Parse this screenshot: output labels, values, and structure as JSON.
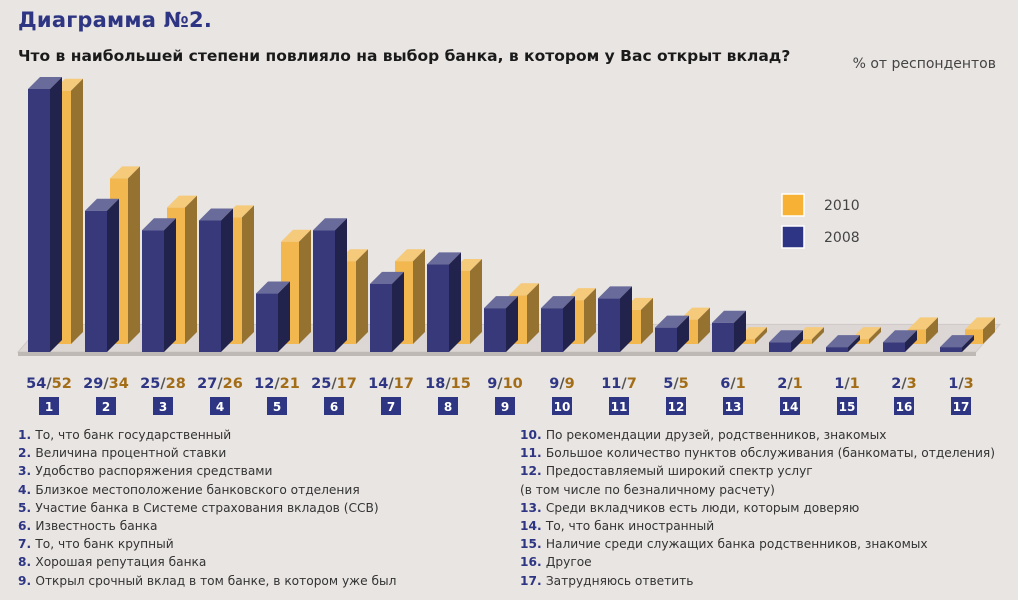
{
  "chart_data": {
    "type": "bar",
    "title": "Диаграмма №2.",
    "subtitle": "Что в наибольшей степени повлияло на выбор банка, в котором у Вас открыт вклад?",
    "unit_label": "% от респондентов",
    "categories": [
      "1",
      "2",
      "3",
      "4",
      "5",
      "6",
      "7",
      "8",
      "9",
      "10",
      "11",
      "12",
      "13",
      "14",
      "15",
      "16",
      "17"
    ],
    "series": [
      {
        "name": "2008",
        "color": "#37397a",
        "values": [
          54,
          29,
          25,
          27,
          12,
          25,
          14,
          18,
          9,
          9,
          11,
          5,
          6,
          2,
          1,
          2,
          1
        ]
      },
      {
        "name": "2010",
        "color": "#f2b84f",
        "values": [
          52,
          34,
          28,
          26,
          21,
          17,
          17,
          15,
          10,
          9,
          7,
          5,
          1,
          1,
          1,
          3,
          3
        ]
      }
    ],
    "value_labels": [
      "54/52",
      "29/34",
      "25/28",
      "27/26",
      "12/21",
      "25/17",
      "14/17",
      "18/15",
      "9/10",
      "9/9",
      "11/7",
      "5/5",
      "6/1",
      "2/1",
      "1/1",
      "2/3",
      "1/3"
    ],
    "legend": [
      {
        "label": "2010",
        "color": "#f7b134"
      },
      {
        "label": "2008",
        "color": "#2f3585"
      }
    ],
    "legend_placement": "right",
    "ylim": [
      0,
      55
    ],
    "grid": false
  },
  "notes_left": [
    {
      "num": "1.",
      "text": "То, что банк государственный"
    },
    {
      "num": "2.",
      "text": "Величина процентной ставки"
    },
    {
      "num": "3.",
      "text": "Удобство распоряжения средствами"
    },
    {
      "num": "4.",
      "text": "Близкое местоположение банковского отделения"
    },
    {
      "num": "5.",
      "text": "Участие банка в Системе страхования вкладов (ССВ)"
    },
    {
      "num": "6.",
      "text": "Известность банка"
    },
    {
      "num": "7.",
      "text": "То, что банк крупный"
    },
    {
      "num": "8.",
      "text": "Хорошая репутация банка"
    },
    {
      "num": "9.",
      "text": "Открыл срочный вклад в том банке, в котором уже был"
    }
  ],
  "notes_right": [
    {
      "num": "10.",
      "text": "По рекомендации друзей, родственников, знакомых"
    },
    {
      "num": "11.",
      "text": "Большое количество пунктов обслуживания (банкоматы, отделения)"
    },
    {
      "num": "12.",
      "text": "Предоставляемый широкий спектр услуг"
    },
    {
      "num": "",
      "text": "(в том числе по безналичному расчету)"
    },
    {
      "num": "13.",
      "text": "Среди вкладчиков есть люди, которым доверяю"
    },
    {
      "num": "14.",
      "text": "То, что банк иностранный"
    },
    {
      "num": "15.",
      "text": "Наличие среди служащих банка родственников, знакомых"
    },
    {
      "num": "16.",
      "text": "Другое"
    },
    {
      "num": "17.",
      "text": "Затрудняюсь ответить"
    }
  ]
}
